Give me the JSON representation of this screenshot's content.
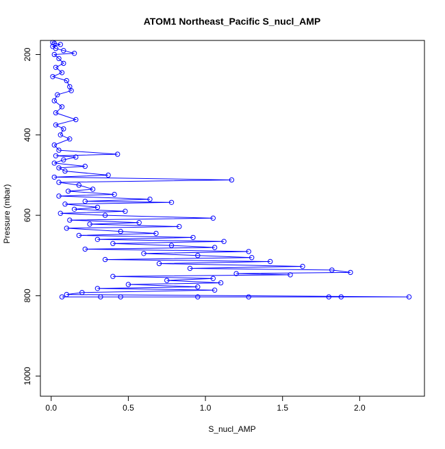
{
  "chart_data": {
    "type": "scatter",
    "title": "ATOM1 Northeast_Pacific S_nucl_AMP",
    "xlabel": "S_nucl_AMP",
    "ylabel": "Pressure (mbar)",
    "xlim": [
      -0.07,
      2.42
    ],
    "ylim": [
      1050,
      165
    ],
    "y_reversed": true,
    "x_ticks": [
      0.0,
      0.5,
      1.0,
      1.5,
      2.0
    ],
    "x_tick_labels": [
      "0.0",
      "0.5",
      "1.0",
      "1.5",
      "2.0"
    ],
    "y_ticks": [
      200,
      400,
      600,
      800,
      1000
    ],
    "y_tick_labels": [
      "200",
      "400",
      "600",
      "800",
      "1000"
    ],
    "grid": false,
    "marker": "open-circle",
    "connected": true,
    "series_color": "#0000ff",
    "series": [
      {
        "points": [
          {
            "x": 0.01,
            "y": 170
          },
          {
            "x": 0.02,
            "y": 172
          },
          {
            "x": 0.06,
            "y": 175
          },
          {
            "x": 0.01,
            "y": 180
          },
          {
            "x": 0.03,
            "y": 185
          },
          {
            "x": 0.08,
            "y": 190
          },
          {
            "x": 0.15,
            "y": 197
          },
          {
            "x": 0.02,
            "y": 200
          },
          {
            "x": 0.05,
            "y": 210
          },
          {
            "x": 0.08,
            "y": 222
          },
          {
            "x": 0.03,
            "y": 232
          },
          {
            "x": 0.07,
            "y": 245
          },
          {
            "x": 0.01,
            "y": 255
          },
          {
            "x": 0.1,
            "y": 265
          },
          {
            "x": 0.12,
            "y": 280
          },
          {
            "x": 0.13,
            "y": 290
          },
          {
            "x": 0.04,
            "y": 300
          },
          {
            "x": 0.02,
            "y": 315
          },
          {
            "x": 0.07,
            "y": 330
          },
          {
            "x": 0.03,
            "y": 345
          },
          {
            "x": 0.16,
            "y": 362
          },
          {
            "x": 0.03,
            "y": 375
          },
          {
            "x": 0.08,
            "y": 385
          },
          {
            "x": 0.06,
            "y": 400
          },
          {
            "x": 0.12,
            "y": 410
          },
          {
            "x": 0.02,
            "y": 425
          },
          {
            "x": 0.05,
            "y": 438
          },
          {
            "x": 0.43,
            "y": 448
          },
          {
            "x": 0.03,
            "y": 452
          },
          {
            "x": 0.16,
            "y": 455
          },
          {
            "x": 0.08,
            "y": 462
          },
          {
            "x": 0.02,
            "y": 470
          },
          {
            "x": 0.22,
            "y": 478
          },
          {
            "x": 0.05,
            "y": 482
          },
          {
            "x": 0.09,
            "y": 490
          },
          {
            "x": 0.37,
            "y": 500
          },
          {
            "x": 0.02,
            "y": 505
          },
          {
            "x": 1.17,
            "y": 512
          },
          {
            "x": 0.05,
            "y": 518
          },
          {
            "x": 0.18,
            "y": 525
          },
          {
            "x": 0.27,
            "y": 535
          },
          {
            "x": 0.11,
            "y": 540
          },
          {
            "x": 0.41,
            "y": 548
          },
          {
            "x": 0.05,
            "y": 552
          },
          {
            "x": 0.64,
            "y": 560
          },
          {
            "x": 0.22,
            "y": 565
          },
          {
            "x": 0.78,
            "y": 568
          },
          {
            "x": 0.09,
            "y": 572
          },
          {
            "x": 0.3,
            "y": 580
          },
          {
            "x": 0.15,
            "y": 585
          },
          {
            "x": 0.48,
            "y": 590
          },
          {
            "x": 0.06,
            "y": 595
          },
          {
            "x": 0.35,
            "y": 600
          },
          {
            "x": 1.05,
            "y": 607
          },
          {
            "x": 0.12,
            "y": 612
          },
          {
            "x": 0.57,
            "y": 618
          },
          {
            "x": 0.25,
            "y": 622
          },
          {
            "x": 0.83,
            "y": 628
          },
          {
            "x": 0.1,
            "y": 632
          },
          {
            "x": 0.45,
            "y": 640
          },
          {
            "x": 0.68,
            "y": 645
          },
          {
            "x": 0.18,
            "y": 650
          },
          {
            "x": 0.92,
            "y": 655
          },
          {
            "x": 0.3,
            "y": 660
          },
          {
            "x": 1.12,
            "y": 665
          },
          {
            "x": 0.4,
            "y": 670
          },
          {
            "x": 0.78,
            "y": 675
          },
          {
            "x": 1.06,
            "y": 680
          },
          {
            "x": 0.22,
            "y": 684
          },
          {
            "x": 1.28,
            "y": 690
          },
          {
            "x": 0.6,
            "y": 695
          },
          {
            "x": 0.95,
            "y": 700
          },
          {
            "x": 1.3,
            "y": 705
          },
          {
            "x": 0.35,
            "y": 710
          },
          {
            "x": 1.42,
            "y": 715
          },
          {
            "x": 0.7,
            "y": 720
          },
          {
            "x": 1.63,
            "y": 727
          },
          {
            "x": 0.9,
            "y": 732
          },
          {
            "x": 1.82,
            "y": 736
          },
          {
            "x": 1.94,
            "y": 742
          },
          {
            "x": 1.2,
            "y": 745
          },
          {
            "x": 1.55,
            "y": 748
          },
          {
            "x": 0.4,
            "y": 752
          },
          {
            "x": 1.05,
            "y": 757
          },
          {
            "x": 0.75,
            "y": 762
          },
          {
            "x": 1.1,
            "y": 768
          },
          {
            "x": 0.5,
            "y": 772
          },
          {
            "x": 0.95,
            "y": 778
          },
          {
            "x": 0.3,
            "y": 782
          },
          {
            "x": 1.06,
            "y": 786
          },
          {
            "x": 0.2,
            "y": 792
          },
          {
            "x": 0.1,
            "y": 797
          },
          {
            "x": 2.32,
            "y": 803
          },
          {
            "x": 1.88,
            "y": 803
          },
          {
            "x": 1.8,
            "y": 803
          },
          {
            "x": 1.28,
            "y": 803
          },
          {
            "x": 0.95,
            "y": 803
          },
          {
            "x": 0.45,
            "y": 803
          },
          {
            "x": 0.32,
            "y": 803
          },
          {
            "x": 0.07,
            "y": 803
          }
        ]
      }
    ]
  }
}
